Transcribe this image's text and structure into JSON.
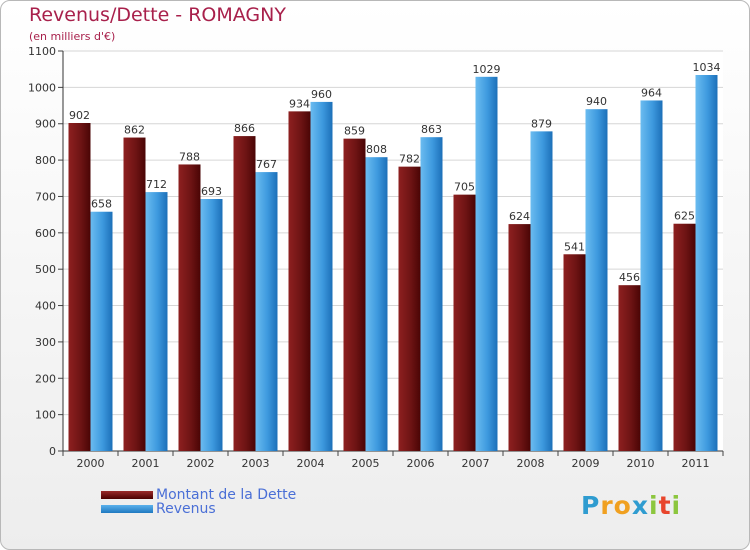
{
  "title": "Revenus/Dette - ROMAGNY",
  "subtitle": "(en milliers d'€)",
  "colors": {
    "dette": "#6b0a0a",
    "revenus": "#2f8fd8",
    "title": "#a8204b",
    "legend_text": "#4a6fd6"
  },
  "chart_data": {
    "type": "bar",
    "title": "Revenus/Dette - ROMAGNY",
    "ylabel": "(en milliers d'€)",
    "xlabel": "",
    "ylim": [
      0,
      1100
    ],
    "yticks": [
      0,
      100,
      200,
      300,
      400,
      500,
      600,
      700,
      800,
      900,
      1000,
      1100
    ],
    "grid": true,
    "categories": [
      "2000",
      "2001",
      "2002",
      "2003",
      "2004",
      "2005",
      "2006",
      "2007",
      "2008",
      "2009",
      "2010",
      "2011"
    ],
    "series": [
      {
        "name": "Montant de la Dette",
        "values": [
          902,
          862,
          788,
          866,
          934,
          859,
          782,
          705,
          624,
          541,
          456,
          625
        ]
      },
      {
        "name": "Revenus",
        "values": [
          658,
          712,
          693,
          767,
          960,
          808,
          863,
          1029,
          879,
          940,
          964,
          1034
        ]
      }
    ]
  },
  "legend": [
    {
      "label": "Montant de la Dette"
    },
    {
      "label": "Revenus"
    }
  ],
  "logo": {
    "text": "Proxiti",
    "letters": [
      {
        "ch": "P",
        "color": "#2f9cd0"
      },
      {
        "ch": "r",
        "color": "#f0a020"
      },
      {
        "ch": "o",
        "color": "#f0a020"
      },
      {
        "ch": "x",
        "color": "#2f9cd0"
      },
      {
        "ch": "i",
        "color": "#8cc63e"
      },
      {
        "ch": "t",
        "color": "#e8452c"
      },
      {
        "ch": "i",
        "color": "#8cc63e"
      }
    ]
  }
}
